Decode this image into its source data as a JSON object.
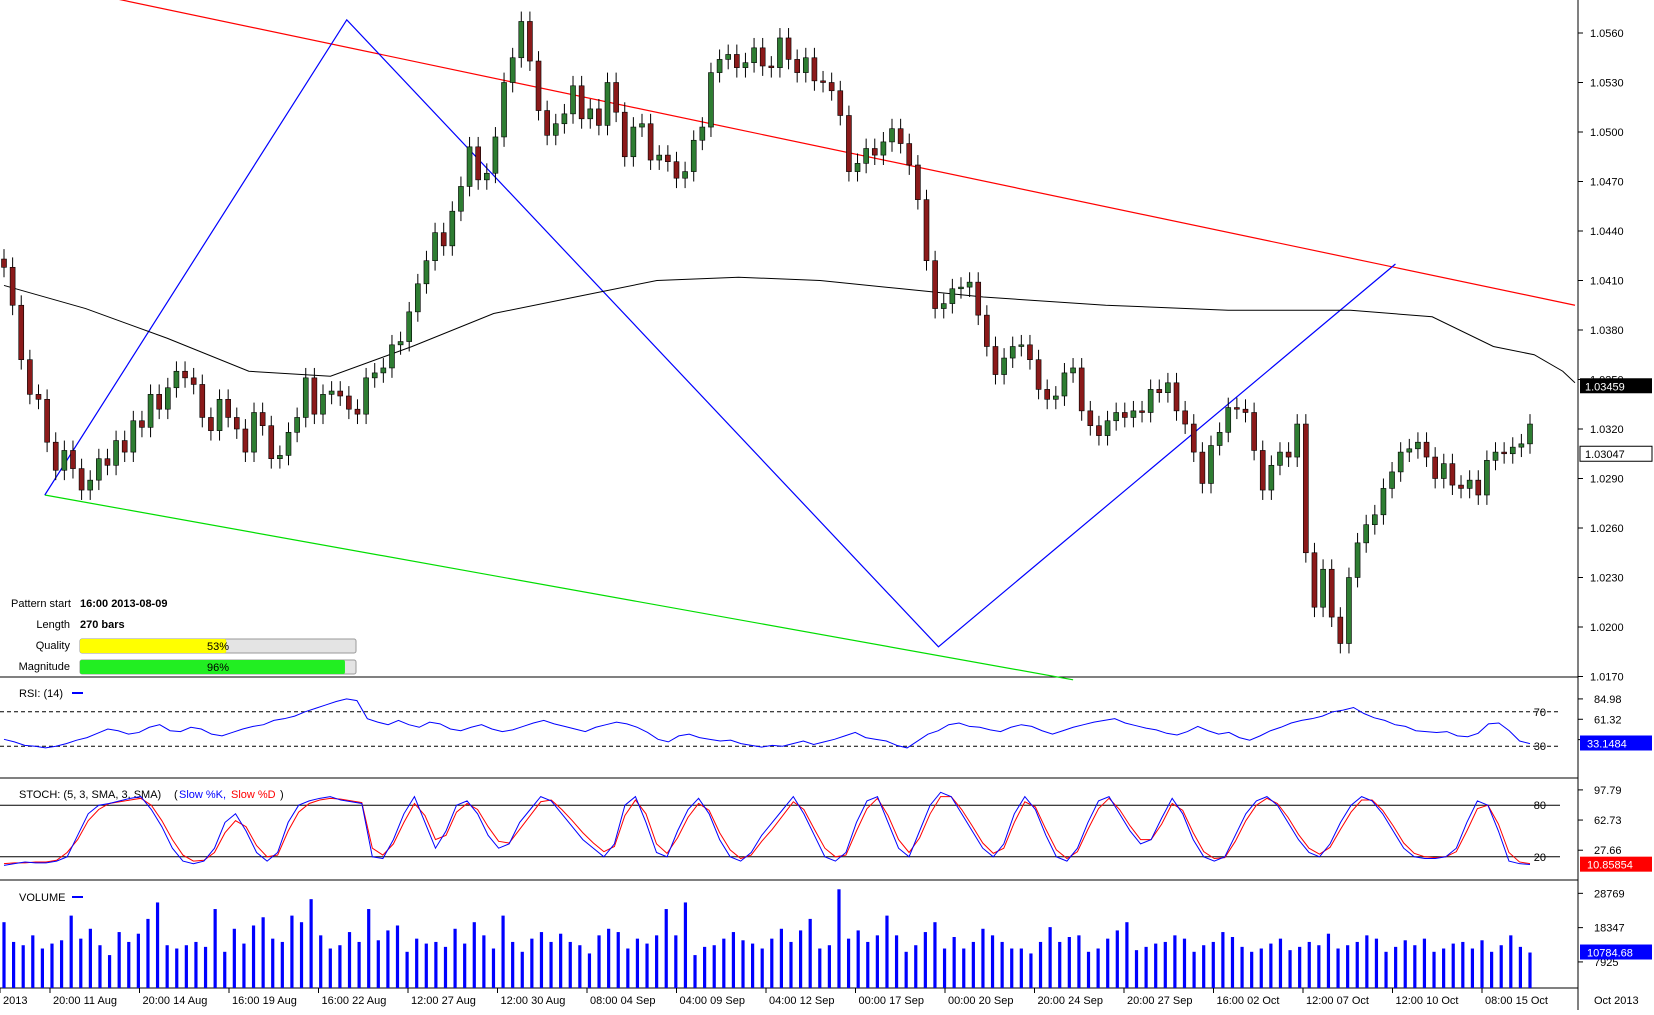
{
  "chart_data": {
    "type": "candlestick",
    "instrument_note": "",
    "price_axis": {
      "ticks": [
        "1.0560",
        "1.0530",
        "1.0500",
        "1.0470",
        "1.0440",
        "1.0410",
        "1.0380",
        "1.0350",
        "1.0320",
        "1.0290",
        "1.0260",
        "1.0230",
        "1.0200",
        "1.0170"
      ],
      "ylim": [
        1.017,
        1.057
      ],
      "last_price_label": "1.03459",
      "current_price_label": "1.03047",
      "last_price": 1.03459,
      "current_price": 1.03047
    },
    "x_axis": {
      "labels": [
        "2013",
        "20:00 11 Aug",
        "20:00 14 Aug",
        "16:00 19 Aug",
        "16:00 22 Aug",
        "12:00 27 Aug",
        "12:00 30 Aug",
        "08:00 04 Sep",
        "04:00 09 Sep",
        "04:00 12 Sep",
        "00:00 17 Sep",
        "00:00 20 Sep",
        "20:00 24 Sep",
        "20:00 27 Sep",
        "16:00 02 Oct",
        "12:00 07 Oct",
        "12:00 10 Oct",
        "08:00 15 Oct"
      ],
      "corner_label": "Oct 2013",
      "bars": 178
    },
    "price_close": [
      1.0418,
      1.0395,
      1.0362,
      1.0341,
      1.0338,
      1.0312,
      1.0295,
      1.0307,
      1.0296,
      1.0283,
      1.0289,
      1.0302,
      1.0298,
      1.0313,
      1.0306,
      1.0325,
      1.0321,
      1.0341,
      1.0332,
      1.0345,
      1.0355,
      1.0351,
      1.0347,
      1.0327,
      1.0319,
      1.0338,
      1.0327,
      1.032,
      1.0306,
      1.033,
      1.0322,
      1.0302,
      1.0304,
      1.0318,
      1.0327,
      1.0351,
      1.0329,
      1.0341,
      1.0343,
      1.034,
      1.0332,
      1.0329,
      1.0351,
      1.0354,
      1.0357,
      1.0371,
      1.0373,
      1.0391,
      1.0408,
      1.0422,
      1.0439,
      1.0431,
      1.0452,
      1.0467,
      1.0491,
      1.0471,
      1.0475,
      1.0497,
      1.053,
      1.0545,
      1.0567,
      1.0543,
      1.0513,
      1.0498,
      1.0505,
      1.0511,
      1.0528,
      1.0508,
      1.0514,
      1.0504,
      1.053,
      1.0512,
      1.0485,
      1.0503,
      1.0505,
      1.0483,
      1.0486,
      1.0482,
      1.0472,
      1.0476,
      1.0495,
      1.0503,
      1.0536,
      1.0544,
      1.0547,
      1.0539,
      1.0542,
      1.0551,
      1.054,
      1.0539,
      1.0557,
      1.0544,
      1.0536,
      1.0545,
      1.0531,
      1.053,
      1.0525,
      1.051,
      1.0476,
      1.0481,
      1.049,
      1.0486,
      1.0494,
      1.0502,
      1.0493,
      1.048,
      1.0459,
      1.0422,
      1.0393,
      1.0396,
      1.0405,
      1.0406,
      1.0409,
      1.0389,
      1.037,
      1.0353,
      1.0363,
      1.037,
      1.0371,
      1.0362,
      1.0344,
      1.0338,
      1.034,
      1.0354,
      1.0357,
      1.0331,
      1.0322,
      1.0316,
      1.0325,
      1.033,
      1.0327,
      1.0331,
      1.033,
      1.0344,
      1.0342,
      1.0348,
      1.0331,
      1.0323,
      1.0306,
      1.0287,
      1.031,
      1.0318,
      1.0333,
      1.0332,
      1.033,
      1.0307,
      1.0283,
      1.0298,
      1.0306,
      1.0303,
      1.0323,
      1.0245,
      1.0212,
      1.0235,
      1.0206,
      1.019,
      1.023,
      1.0251,
      1.0262,
      1.0268,
      1.0284,
      1.0294,
      1.0306,
      1.0308,
      1.0312,
      1.0303,
      1.029,
      1.0299,
      1.0286,
      1.0284,
      1.0289,
      1.028,
      1.0301,
      1.0306,
      1.0305,
      1.0309,
      1.0311,
      1.0323
    ],
    "moving_average": [
      [
        0,
        1.0407
      ],
      [
        20,
        1.0393
      ],
      [
        40,
        1.0375
      ],
      [
        60,
        1.0355
      ],
      [
        80,
        1.0352
      ],
      [
        100,
        1.037
      ],
      [
        120,
        1.039
      ],
      [
        140,
        1.04
      ],
      [
        160,
        1.041
      ],
      [
        180,
        1.0412
      ],
      [
        200,
        1.041
      ],
      [
        220,
        1.0405
      ],
      [
        240,
        1.04
      ],
      [
        270,
        1.0395
      ],
      [
        300,
        1.0392
      ],
      [
        330,
        1.0392
      ],
      [
        350,
        1.0388
      ],
      [
        365,
        1.037
      ],
      [
        375,
        1.0365
      ],
      [
        382,
        1.0355
      ],
      [
        385,
        1.0348
      ]
    ],
    "pattern": {
      "resistance_line": [
        [
          1.0595,
          0
        ],
        [
          1.0395,
          385
        ]
      ],
      "support_line": [
        [
          1.028,
          10
        ],
        [
          1.0168,
          262
        ]
      ],
      "zigzag": [
        [
          1.028,
          10
        ],
        [
          1.0568,
          84
        ],
        [
          1.0188,
          229
        ],
        [
          1.042,
          341
        ]
      ]
    },
    "info_panel": {
      "pattern_start_label": "Pattern start",
      "pattern_start_value": "16:00 2013-08-09",
      "length_label": "Length",
      "length_value": "270 bars",
      "quality_label": "Quality",
      "quality_value": "53%",
      "quality_fraction": 0.53,
      "magnitude_label": "Magnitude",
      "magnitude_value": "96%",
      "magnitude_fraction": 0.96
    },
    "rsi": {
      "title": "RSI: (14)",
      "ticks": [
        "84.98",
        "61.32",
        "37.66"
      ],
      "levels": [
        "70",
        "30"
      ],
      "current_label": "33.1484",
      "values": [
        38,
        35,
        31,
        30,
        28,
        30,
        33,
        37,
        40,
        45,
        50,
        48,
        44,
        46,
        52,
        55,
        48,
        47,
        52,
        50,
        44,
        42,
        46,
        50,
        53,
        55,
        60,
        62,
        65,
        70,
        74,
        78,
        82,
        85,
        83,
        62,
        58,
        55,
        60,
        55,
        52,
        58,
        56,
        50,
        48,
        52,
        55,
        50,
        47,
        49,
        53,
        57,
        60,
        56,
        53,
        50,
        47,
        52,
        55,
        58,
        56,
        52,
        46,
        38,
        35,
        42,
        44,
        40,
        38,
        36,
        37,
        33,
        31,
        29,
        31,
        30,
        33,
        36,
        32,
        35,
        38,
        42,
        46,
        40,
        38,
        36,
        31,
        28,
        36,
        44,
        48,
        55,
        57,
        53,
        52,
        49,
        47,
        52,
        55,
        53,
        48,
        44,
        48,
        52,
        55,
        58,
        60,
        62,
        57,
        54,
        51,
        49,
        45,
        43,
        47,
        53,
        48,
        44,
        46,
        40,
        37,
        42,
        48,
        52,
        57,
        60,
        62,
        65,
        70,
        72,
        75,
        68,
        63,
        60,
        55,
        53,
        48,
        47,
        46,
        47,
        42,
        41,
        45,
        56,
        57,
        48,
        36,
        33
      ]
    },
    "stochastic": {
      "title": "STOCH: (5, 3, SMA, 3, SMA)",
      "k_label": "Slow %K,",
      "d_label": "Slow %D",
      "ticks": [
        "97.79",
        "62.73",
        "27.66"
      ],
      "levels": [
        "80",
        "20"
      ],
      "current_label": "10.85854",
      "k_values": [
        10,
        12,
        14,
        13,
        13,
        15,
        20,
        45,
        70,
        80,
        82,
        85,
        88,
        90,
        75,
        55,
        30,
        15,
        12,
        15,
        30,
        60,
        70,
        50,
        25,
        15,
        25,
        60,
        80,
        85,
        88,
        90,
        86,
        84,
        82,
        20,
        18,
        40,
        70,
        90,
        60,
        30,
        50,
        80,
        85,
        70,
        45,
        30,
        35,
        60,
        75,
        90,
        85,
        70,
        55,
        40,
        30,
        20,
        35,
        80,
        90,
        60,
        25,
        20,
        50,
        75,
        88,
        70,
        40,
        20,
        15,
        25,
        45,
        60,
        75,
        90,
        70,
        45,
        20,
        15,
        25,
        60,
        85,
        90,
        60,
        30,
        20,
        50,
        80,
        95,
        90,
        70,
        50,
        30,
        20,
        35,
        70,
        90,
        75,
        45,
        20,
        15,
        30,
        60,
        85,
        90,
        70,
        50,
        35,
        40,
        65,
        88,
        70,
        40,
        20,
        15,
        20,
        45,
        70,
        85,
        90,
        80,
        60,
        40,
        25,
        20,
        35,
        60,
        80,
        90,
        85,
        70,
        50,
        30,
        20,
        18,
        18,
        20,
        30,
        60,
        85,
        80,
        50,
        15,
        12,
        11
      ],
      "d_values": [
        12,
        13,
        13,
        14,
        14,
        16,
        25,
        40,
        62,
        75,
        82,
        84,
        86,
        88,
        80,
        62,
        40,
        22,
        15,
        16,
        25,
        48,
        62,
        55,
        33,
        20,
        22,
        50,
        72,
        82,
        86,
        88,
        87,
        85,
        83,
        30,
        22,
        35,
        60,
        82,
        68,
        40,
        45,
        72,
        82,
        75,
        55,
        38,
        36,
        52,
        68,
        84,
        86,
        75,
        62,
        48,
        36,
        26,
        32,
        68,
        86,
        70,
        35,
        24,
        42,
        66,
        82,
        74,
        48,
        28,
        18,
        22,
        38,
        52,
        68,
        84,
        75,
        52,
        30,
        20,
        22,
        50,
        76,
        88,
        68,
        40,
        25,
        42,
        70,
        90,
        90,
        75,
        56,
        36,
        24,
        30,
        60,
        84,
        78,
        52,
        28,
        18,
        26,
        52,
        76,
        88,
        75,
        56,
        40,
        40,
        58,
        82,
        74,
        48,
        26,
        18,
        19,
        38,
        62,
        80,
        88,
        82,
        66,
        46,
        30,
        23,
        31,
        52,
        72,
        86,
        86,
        74,
        56,
        36,
        24,
        20,
        19,
        20,
        26,
        50,
        76,
        80,
        58,
        25,
        14,
        12
      ]
    },
    "volume": {
      "title": "VOLUME",
      "ticks": [
        "28769",
        "18347",
        "7925"
      ],
      "current_label": "10784.68",
      "values": [
        20000,
        14000,
        13000,
        16000,
        12000,
        13500,
        14500,
        22000,
        15000,
        18000,
        13000,
        10000,
        17000,
        14000,
        16500,
        21000,
        26000,
        13000,
        12000,
        13000,
        14000,
        12500,
        24000,
        11000,
        18000,
        13500,
        19000,
        21500,
        15000,
        14000,
        22000,
        20000,
        27000,
        16000,
        12000,
        13000,
        17000,
        14000,
        24000,
        14500,
        17500,
        19000,
        11000,
        15000,
        13500,
        14000,
        12500,
        18000,
        13500,
        20000,
        16000,
        12000,
        22000,
        14000,
        11000,
        15000,
        17000,
        14000,
        16500,
        14000,
        13000,
        10500,
        16000,
        18000,
        17000,
        12000,
        15000,
        13500,
        16000,
        24000,
        16000,
        26000,
        10000,
        12500,
        13000,
        15000,
        17000,
        14500,
        13500,
        12000,
        15000,
        18000,
        14000,
        17500,
        21000,
        12000,
        13000,
        30000,
        15000,
        17500,
        14000,
        16000,
        22000,
        16000,
        11000,
        13000,
        17000,
        20000,
        12000,
        15500,
        12000,
        14000,
        18000,
        16000,
        14000,
        12000,
        12000,
        10500,
        14000,
        18500,
        14000,
        15500,
        16000,
        11000,
        12000,
        15000,
        17500,
        20000,
        11500,
        12500,
        13500,
        14000,
        16000,
        15000,
        11000,
        13000,
        14000,
        17000,
        15500,
        12500,
        11000,
        12000,
        13500,
        15000,
        11500,
        12500,
        14000,
        13000,
        16500,
        12000,
        13000,
        14000,
        16000,
        15000,
        11000,
        12500,
        14500,
        13000,
        15000,
        11000,
        12000,
        13500,
        14000,
        12000,
        14500,
        11000,
        13000,
        16000,
        12500,
        10784
      ]
    }
  }
}
